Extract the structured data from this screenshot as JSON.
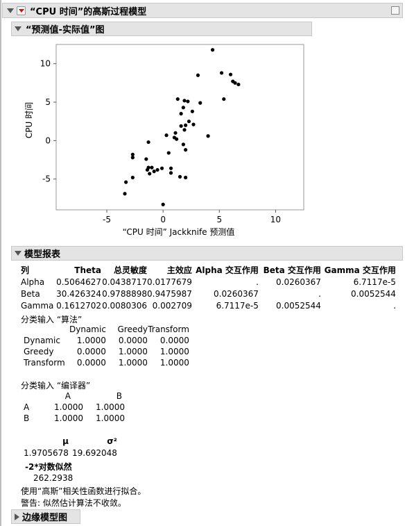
{
  "report": {
    "title": "“CPU 时间”的高斯过程模型",
    "plot_section_title": "“预测值-实际值”图",
    "model_report_title": "模型报表",
    "marginal_title": "边缘模型图"
  },
  "chart_data": {
    "type": "scatter",
    "xlabel": "“CPU 时间” Jackknife 预测值",
    "ylabel": "CPU 时间",
    "xlim": [
      -9.5,
      12.5
    ],
    "ylim": [
      -9,
      12.5
    ],
    "xticks": [
      -5,
      0,
      5,
      10
    ],
    "yticks": [
      10,
      5,
      0,
      -5
    ],
    "points": [
      [
        4.4,
        11.8
      ],
      [
        5.2,
        8.8
      ],
      [
        6.0,
        8.6
      ],
      [
        6.2,
        7.7
      ],
      [
        6.4,
        7.5
      ],
      [
        6.7,
        7.3
      ],
      [
        3.1,
        8.5
      ],
      [
        5.4,
        5.4
      ],
      [
        1.3,
        5.4
      ],
      [
        1.9,
        5.2
      ],
      [
        2.2,
        5.1
      ],
      [
        1.8,
        4.3
      ],
      [
        3.3,
        4.9
      ],
      [
        1.6,
        3.5
      ],
      [
        2.6,
        3.8
      ],
      [
        2.3,
        2.5
      ],
      [
        2.7,
        2.1
      ],
      [
        2.0,
        2.0
      ],
      [
        1.6,
        1.9
      ],
      [
        1.9,
        1.4
      ],
      [
        1.1,
        1.0
      ],
      [
        0.3,
        0.7
      ],
      [
        4.0,
        0.6
      ],
      [
        1.0,
        0.4
      ],
      [
        1.2,
        0.2
      ],
      [
        1.8,
        -0.5
      ],
      [
        2.0,
        -1.2
      ],
      [
        -1.3,
        -0.2
      ],
      [
        0.5,
        -1.6
      ],
      [
        -2.7,
        -1.8
      ],
      [
        -2.7,
        -2.2
      ],
      [
        -1.5,
        -2.4
      ],
      [
        -1.3,
        -3.5
      ],
      [
        -1.0,
        -3.5
      ],
      [
        -0.5,
        -3.8
      ],
      [
        -0.1,
        -3.6
      ],
      [
        0.7,
        -3.6
      ],
      [
        -1.4,
        -3.8
      ],
      [
        -0.8,
        -4.0
      ],
      [
        -1.2,
        -4.3
      ],
      [
        0.7,
        -4.2
      ],
      [
        1.5,
        -4.7
      ],
      [
        2.0,
        -4.8
      ],
      [
        -2.7,
        -4.8
      ],
      [
        -3.3,
        -5.4
      ],
      [
        -3.4,
        -6.9
      ],
      [
        0.0,
        -8.3
      ]
    ]
  },
  "model_table": {
    "headers": [
      "列",
      "Theta",
      "总灵敏度",
      "主效应",
      "Alpha 交互作用",
      "Beta 交互作用",
      "Gamma 交互作用"
    ],
    "rows": [
      [
        "Alpha",
        "0.5064627",
        "0.0438717",
        "0.0177679",
        ".",
        "0.0260367",
        "6.7117e-5"
      ],
      [
        "Beta",
        "30.426324",
        "0.9788898",
        "0.9475987",
        "0.0260367",
        ".",
        "0.0052544"
      ],
      [
        "Gamma",
        "0.1612702",
        "0.0080306",
        "0.002709",
        "6.7117e-5",
        "0.0052544",
        "."
      ]
    ]
  },
  "cat_algorithm": {
    "title": "分类输入 “算法”",
    "cols": [
      "Dynamic",
      "Greedy",
      "Transform"
    ],
    "rows": [
      [
        "Dynamic",
        "1.0000",
        "0.0000",
        "0.0000"
      ],
      [
        "Greedy",
        "0.0000",
        "1.0000",
        "1.0000"
      ],
      [
        "Transform",
        "0.0000",
        "1.0000",
        "1.0000"
      ]
    ]
  },
  "cat_compiler": {
    "title": "分类输入 “编译器”",
    "cols": [
      "A",
      "B"
    ],
    "rows": [
      [
        "A",
        "1.0000",
        "1.0000"
      ],
      [
        "B",
        "1.0000",
        "1.0000"
      ]
    ]
  },
  "params": {
    "mu_label": "μ",
    "sigma_label": "σ²",
    "mu_value": "1.9705678",
    "sigma_value": "19.692048",
    "loglik_label": "-2*对数似然",
    "loglik_value": "262.2938"
  },
  "notes": {
    "line1": "使用“高斯”相关性函数进行拟合。",
    "line2": "警告: 似然估计算法不收敛。"
  },
  "colors": {
    "header_bg": "#e4e4e4",
    "red_triangle": "#d01010",
    "point": "#000000"
  }
}
